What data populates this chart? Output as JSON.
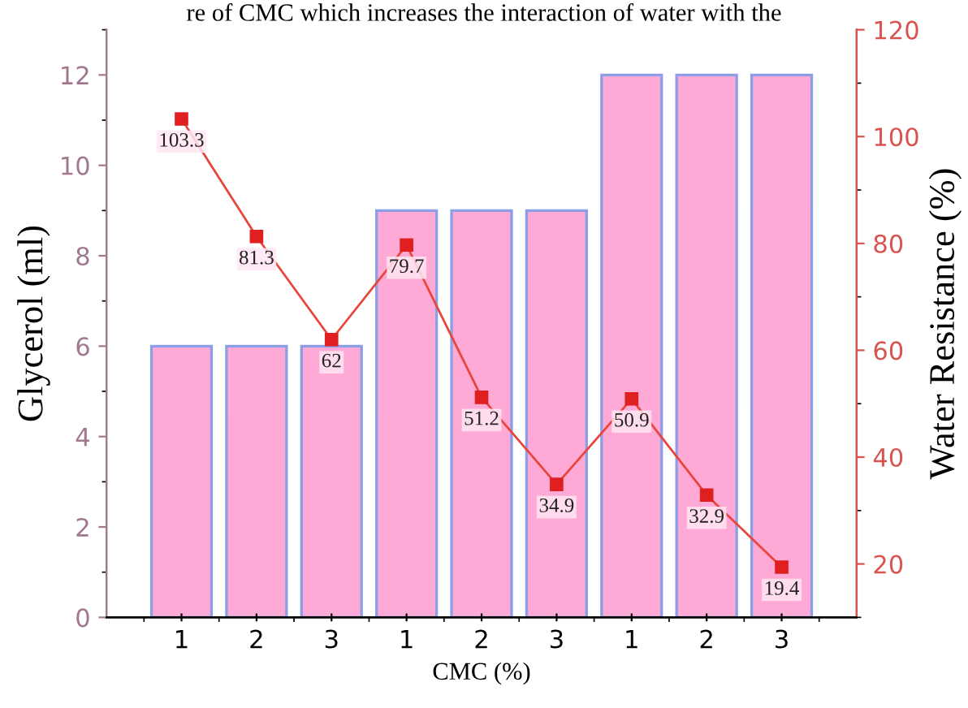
{
  "chart_data": {
    "type": "bar",
    "annotations": [
      "re of CMC which increases the interaction of water with the"
    ],
    "xlabel": "CMC (%)",
    "ylabel": "Glycerol (ml)",
    "y2label": "Water Resistance (%)",
    "categories": [
      "1",
      "2",
      "3",
      "1",
      "2",
      "3",
      "1",
      "2",
      "3"
    ],
    "series": [
      {
        "color": "#ffaad6",
        "values": [
          6,
          6,
          6,
          9,
          9,
          9,
          12,
          12,
          12
        ]
      },
      {
        "type": "line",
        "axis": "y2",
        "color": "#e8453c",
        "marker": "square",
        "values": [
          103.3,
          81.3,
          62,
          79.7,
          51.2,
          34.9,
          50.9,
          32.9,
          19.4
        ],
        "value_labels": [
          "103.3",
          "81.3",
          "62",
          "79.7",
          "51.2",
          "34.9",
          "50.9",
          "32.9",
          "19.4"
        ]
      }
    ],
    "ylim": [
      0,
      13
    ],
    "yticks": [
      0,
      2,
      4,
      6,
      8,
      10,
      12
    ],
    "y2lim": [
      10,
      120
    ],
    "y2ticks": [
      20,
      40,
      60,
      80,
      100,
      120
    ],
    "grid": false,
    "legend": false
  }
}
